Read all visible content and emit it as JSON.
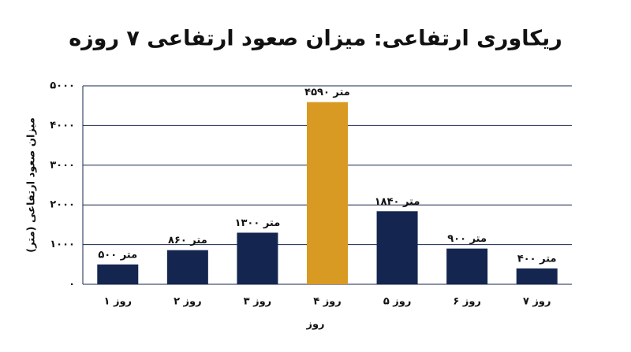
{
  "chart_data": {
    "type": "bar",
    "title": "ریکاوری ارتفاعی: میزان صعود ارتفاعی ۷ روزه",
    "x_label": "روز",
    "y_label": "میزان صعود ارتفاعی (متر)",
    "categories": [
      "روز ۱",
      "روز ۲",
      "روز ۳",
      "روز ۴",
      "روز ۵",
      "روز ۶",
      "روز ۷"
    ],
    "values": [
      500,
      860,
      1300,
      4590,
      1840,
      900,
      400
    ],
    "value_labels": [
      "۵۰۰ متر",
      "۸۶۰ متر",
      "۱۳۰۰ متر",
      "۴۵۹۰ متر",
      "۱۸۴۰ متر",
      "۹۰۰ متر",
      "۴۰۰ متر"
    ],
    "colors": [
      "#14264f",
      "#14264f",
      "#14264f",
      "#d89a22",
      "#14264f",
      "#14264f",
      "#14264f"
    ],
    "ylim": [
      0,
      5000
    ],
    "yticks": [
      {
        "value": 0,
        "label": "۰"
      },
      {
        "value": 1000,
        "label": "۱۰۰۰"
      },
      {
        "value": 2000,
        "label": "۲۰۰۰"
      },
      {
        "value": 3000,
        "label": "۳۰۰۰"
      },
      {
        "value": 4000,
        "label": "۴۰۰۰"
      },
      {
        "value": 5000,
        "label": "۵۰۰۰"
      }
    ],
    "grid": true
  }
}
